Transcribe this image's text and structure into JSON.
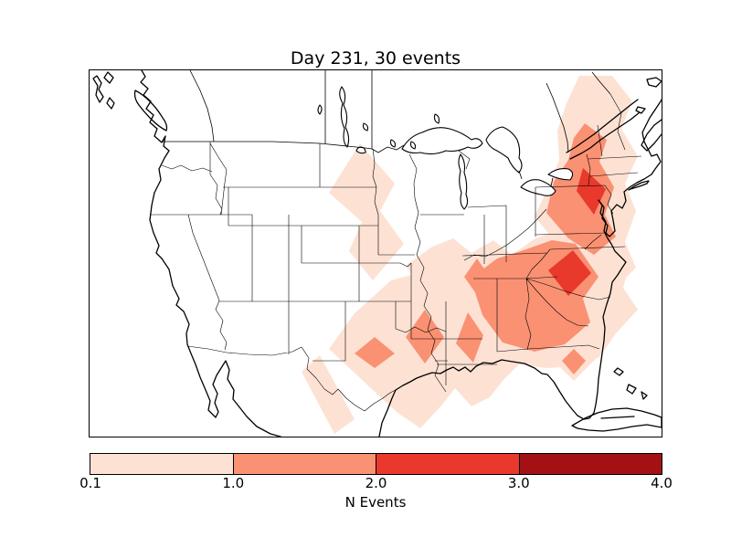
{
  "title": "Day 231, 30 events",
  "map": {
    "region": "Contiguous United States with southern Canada, Mexico, Cuba and Bahamas",
    "features": [
      "coastlines",
      "state-borders",
      "province-borders",
      "country-borders",
      "great-lakes"
    ]
  },
  "colorbar": {
    "label": "N Events",
    "ticks": [
      "0.1",
      "1.0",
      "2.0",
      "3.0",
      "4.0"
    ],
    "segment_colors": [
      "#fde2d4",
      "#fa9173",
      "#e8392c",
      "#a31115"
    ]
  },
  "chart_data": {
    "type": "heatmap",
    "title": "Day 231, 30 events",
    "day": 231,
    "event_count": 30,
    "colorbar_label": "N Events",
    "levels": [
      0.1,
      1.0,
      2.0,
      3.0,
      4.0
    ],
    "level_colors": [
      "#fde2d4",
      "#fa9173",
      "#e8392c",
      "#a31115"
    ],
    "legend_position": "bottom horizontal colorbar",
    "regions": [
      {
        "name": "New Jersey / mid-Atlantic core",
        "value_range": "2-3"
      },
      {
        "name": "North Carolina / South Carolina border",
        "value_range": "2-3"
      },
      {
        "name": "Vermont / New Hampshire through Pennsylvania and Maryland band",
        "value_range": "1-2"
      },
      {
        "name": "Tennessee / Georgia / Alabama / western Carolinas",
        "value_range": "1-2"
      },
      {
        "name": "Western Kentucky",
        "value_range": "1-2"
      },
      {
        "name": "Arkansas / northeast Texas",
        "value_range": "1-2"
      },
      {
        "name": "North-central Texas",
        "value_range": "1-2"
      },
      {
        "name": "Louisiana / Mississippi",
        "value_range": "1-2"
      },
      {
        "name": "Central Florida",
        "value_range": "1-2"
      },
      {
        "name": "Dakotas / western Minnesota into Nebraska band",
        "value_range": "0.1-1"
      },
      {
        "name": "Maine and northern New England fringe",
        "value_range": "0.1-1"
      },
      {
        "name": "Broad Southeast and south-central fringe (offshore bulges along NJ and SC coasts)",
        "value_range": "0.1-1"
      }
    ]
  }
}
